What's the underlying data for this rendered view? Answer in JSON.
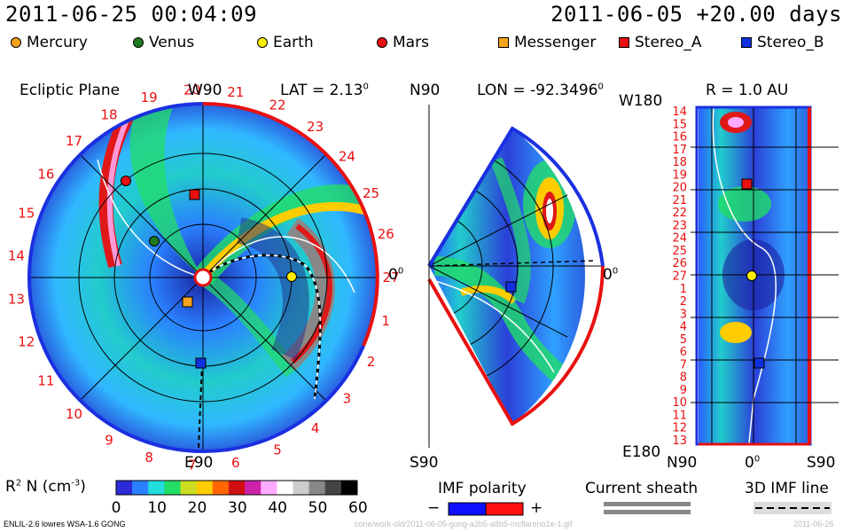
{
  "header": {
    "timestamp": "2011-06-25 00:04:09",
    "run_info": "2011-06-05 +20.00 days"
  },
  "legend": [
    {
      "label": "Mercury",
      "shape": "circle",
      "color": "#f7a21b"
    },
    {
      "label": "Venus",
      "shape": "circle",
      "color": "#1f7a1f"
    },
    {
      "label": "Earth",
      "shape": "circle",
      "color": "#ffee00"
    },
    {
      "label": "Mars",
      "shape": "circle",
      "color": "#e81010"
    },
    {
      "label": "Messenger",
      "shape": "square",
      "color": "#f7a21b"
    },
    {
      "label": "Stereo_A",
      "shape": "square",
      "color": "#e81010"
    },
    {
      "label": "Stereo_B",
      "shape": "square",
      "color": "#1030e0"
    }
  ],
  "panel_left": {
    "title": "Ecliptic Plane",
    "top_label": "W90",
    "lat_label": "LAT = 2.13",
    "lat_sup": "0",
    "right_label": "0",
    "right_sup": "0",
    "bottom_label": "E90",
    "rim_numbers": [
      "1",
      "2",
      "3",
      "4",
      "5",
      "6",
      "7",
      "8",
      "9",
      "10",
      "11",
      "12",
      "13",
      "14",
      "15",
      "16",
      "17",
      "18",
      "19",
      "20",
      "21",
      "22",
      "23",
      "24",
      "25",
      "26",
      "27"
    ]
  },
  "panel_mid": {
    "top_label": "N90",
    "lon_label": "LON = -92.3496",
    "lon_sup": "0",
    "right_label": "0",
    "right_sup": "0",
    "bottom_label": "S90"
  },
  "panel_right": {
    "corner_label": "W180",
    "r_label": "R = 1.0 AU",
    "rows": [
      "14",
      "15",
      "16",
      "17",
      "18",
      "19",
      "20",
      "21",
      "22",
      "23",
      "24",
      "25",
      "26",
      "27",
      "1",
      "2",
      "3",
      "4",
      "5",
      "6",
      "7",
      "8",
      "9",
      "10",
      "11",
      "12",
      "13"
    ],
    "bottom_left": "E180",
    "x_ticks": [
      "N90",
      "0",
      "S90"
    ],
    "x_mid_sup": "0"
  },
  "colorbar": {
    "label": "R",
    "label_sup": "2",
    "label_rest": " N (cm",
    "label_sup2": "-3",
    "label_end": ")",
    "ticks": [
      "0",
      "10",
      "20",
      "30",
      "40",
      "50",
      "60"
    ],
    "colors": [
      "#2a2ad8",
      "#2a80ff",
      "#22dddd",
      "#22dd66",
      "#ccdd22",
      "#ffcc00",
      "#ff6600",
      "#d01010",
      "#cc22aa",
      "#ffaaff",
      "#ffffff",
      "#cccccc",
      "#888888",
      "#444444",
      "#000000"
    ]
  },
  "keys": {
    "imf_title": "IMF polarity",
    "imf_minus": "−",
    "imf_plus": "+",
    "sheath_title": "Current sheath",
    "imf3d_title": "3D IMF line"
  },
  "footer": {
    "model": "ENLIL-2.6 lowres WSA-1.6 GONG",
    "path": "cone/work-old/2011-06-05-gong-a2b5-a8b5-mcflareno1e-1.gif",
    "date": "2011-06-26"
  }
}
